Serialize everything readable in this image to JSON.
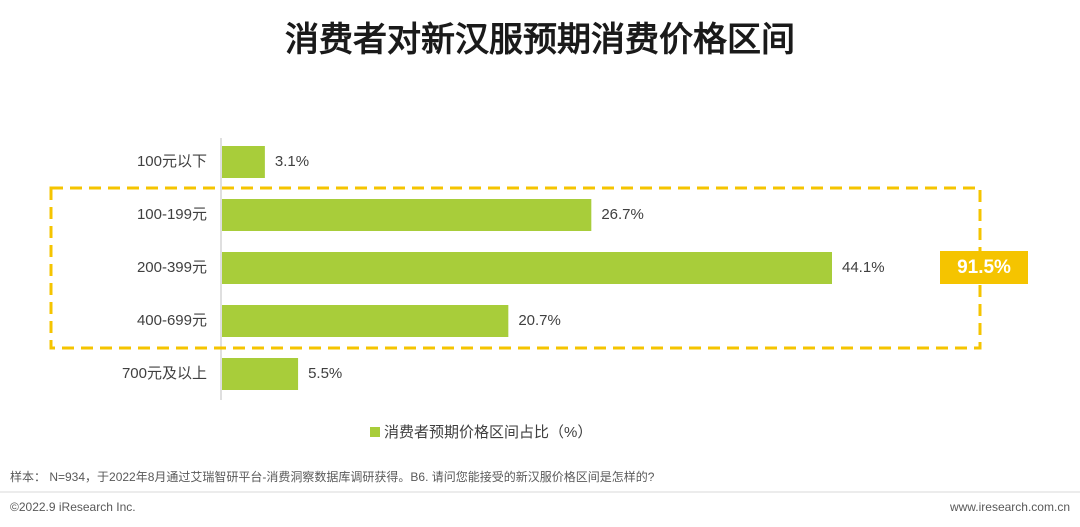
{
  "chart_data": {
    "type": "bar",
    "orientation": "horizontal",
    "title": "消费者对新汉服预期消费价格区间",
    "categories": [
      "100元以下",
      "100-199元",
      "200-399元",
      "400-699元",
      "700元及以上"
    ],
    "series": [
      {
        "name": "消费者预期价格区间占比（%）",
        "color": "#a8cd3a",
        "values": [
          3.1,
          26.7,
          44.1,
          20.7,
          5.5
        ],
        "value_labels": [
          "3.1%",
          "26.7%",
          "44.1%",
          "20.7%",
          "5.5%"
        ]
      }
    ],
    "annotation": "91.5%"
  },
  "footer": {
    "note": "样本： N=934，于2022年8月通过艾瑞智研平台-消费洞察数据库调研获得。B6. 请问您能接受的新汉服价格区间是怎样的?",
    "copyright": "©2022.9 iResearch Inc.",
    "website": "www.iresearch.com.cn"
  }
}
